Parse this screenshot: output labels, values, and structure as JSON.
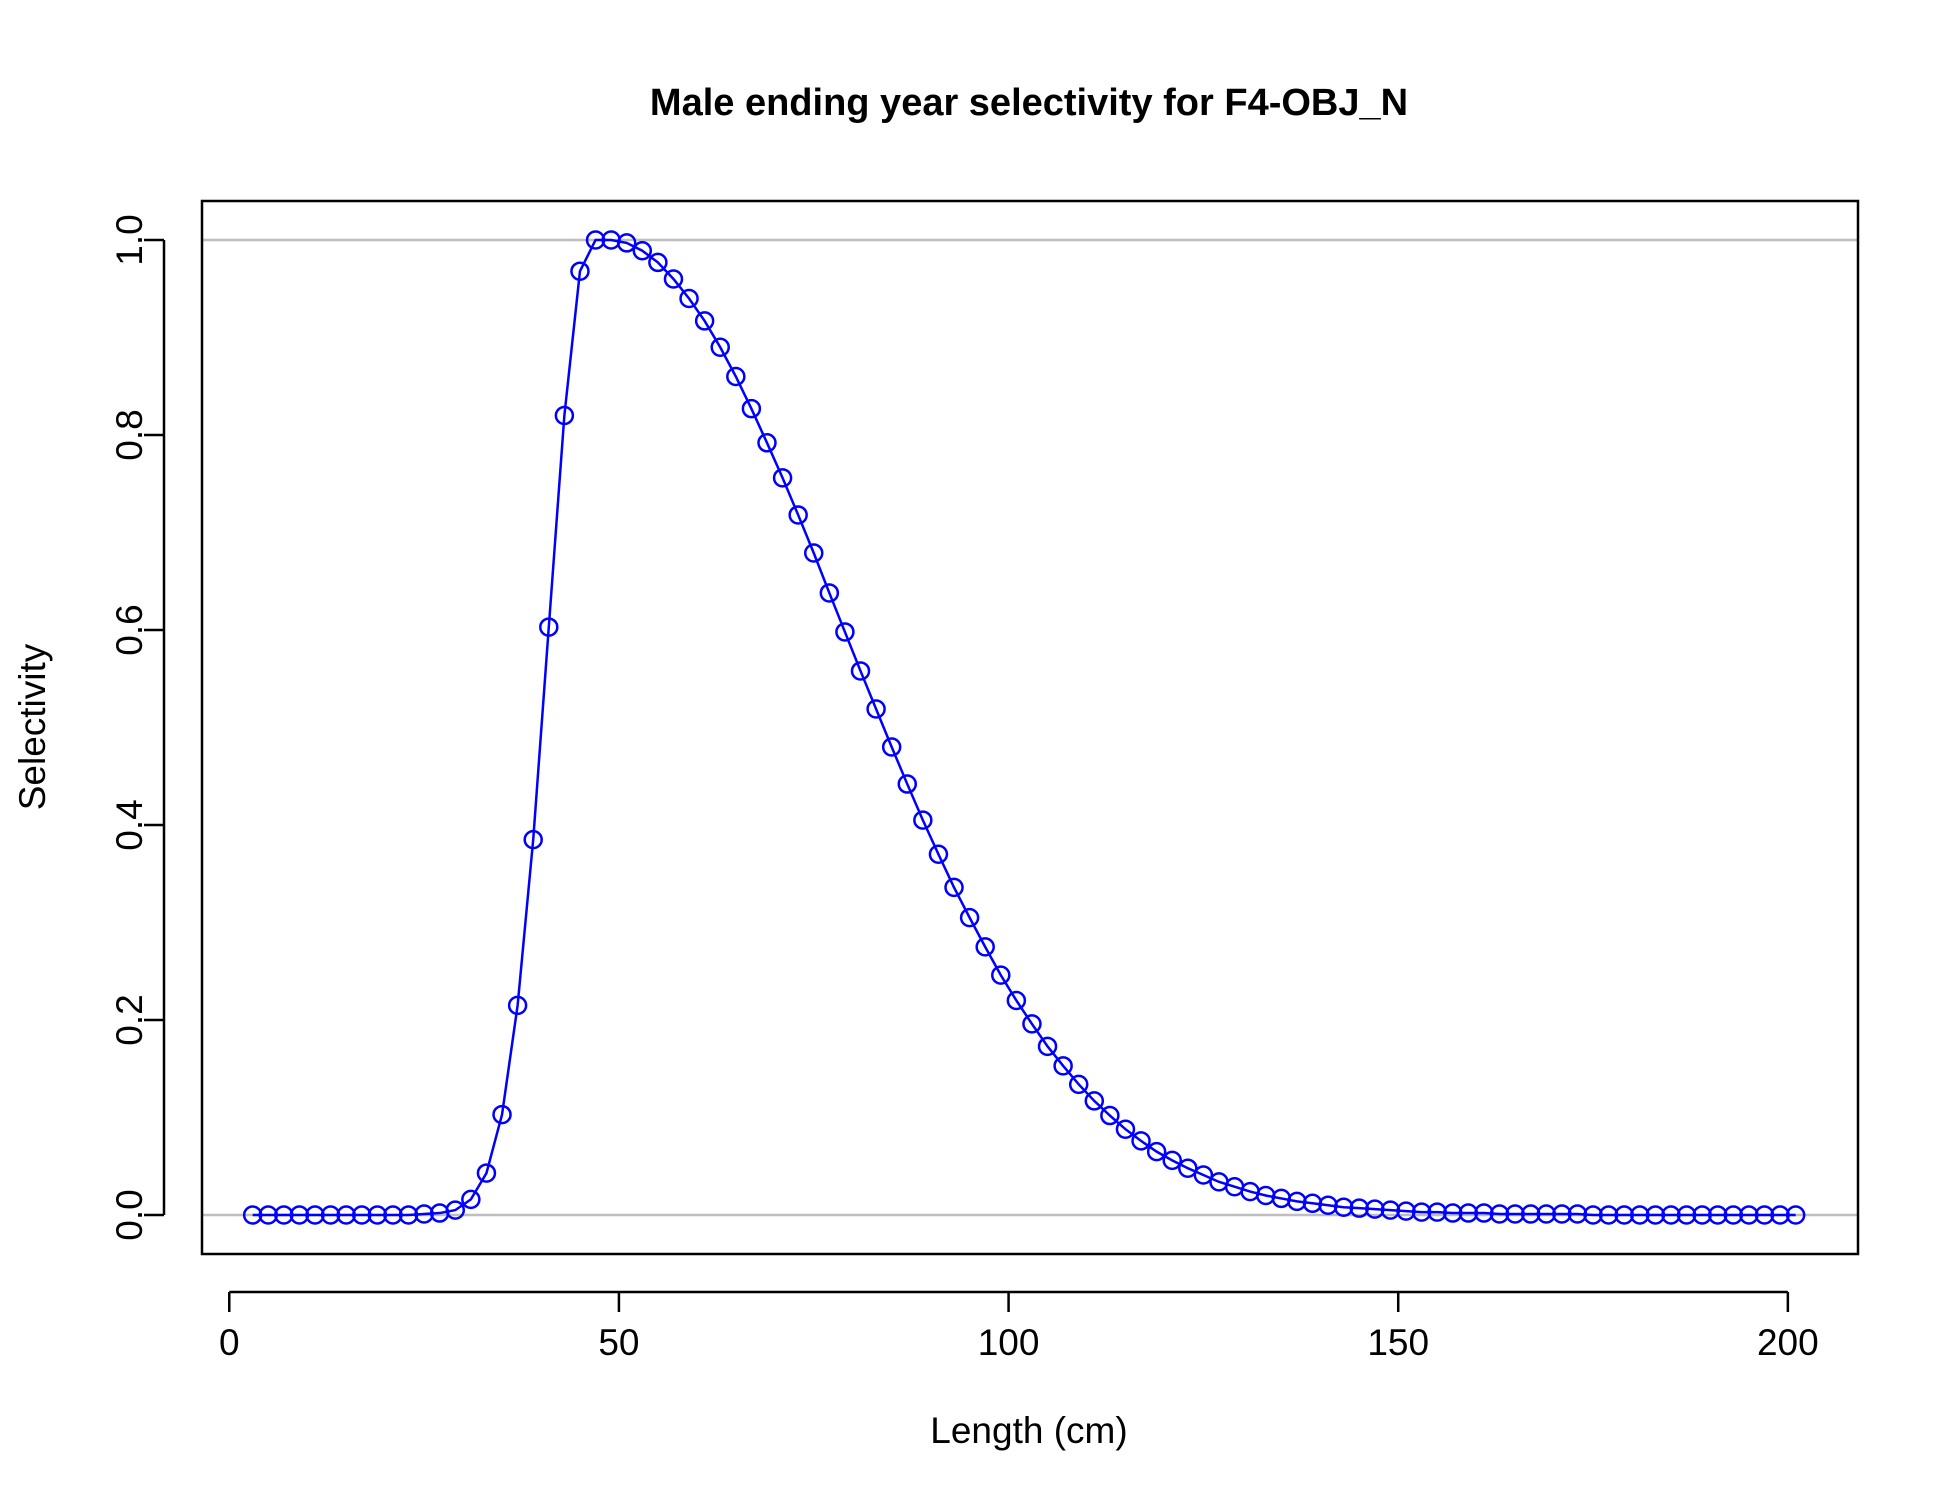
{
  "chart_data": {
    "type": "line",
    "title": "Male ending year selectivity for F4-OBJ_N",
    "xlabel": "Length (cm)",
    "ylabel": "Selectivity",
    "xlim": [
      -3.5,
      209
    ],
    "ylim": [
      -0.04,
      1.04
    ],
    "xticks": [
      "0",
      "50",
      "100",
      "150",
      "200"
    ],
    "yticks": [
      "0.0",
      "0.2",
      "0.4",
      "0.6",
      "0.8",
      "1.0"
    ],
    "reference_lines": [
      0,
      1
    ],
    "grid": false,
    "legend": "none",
    "markers": "open-circle",
    "colors": {
      "series": "#0000ff",
      "reference": "#bebebe",
      "axis": "#000000"
    },
    "series": [
      {
        "x": [
          3,
          5,
          7,
          9,
          11,
          13,
          15,
          17,
          19,
          21,
          23,
          25,
          27,
          29,
          31,
          33,
          35,
          37,
          39,
          41,
          43,
          45,
          47,
          49,
          51,
          53,
          55,
          57,
          59,
          61,
          63,
          65,
          67,
          69,
          71,
          73,
          75,
          77,
          79,
          81,
          83,
          85,
          87,
          89,
          91,
          93,
          95,
          97,
          99,
          101,
          103,
          105,
          107,
          109,
          111,
          113,
          115,
          117,
          119,
          121,
          123,
          125,
          127,
          129,
          131,
          133,
          135,
          137,
          139,
          141,
          143,
          145,
          147,
          149,
          151,
          153,
          155,
          157,
          159,
          161,
          163,
          165,
          167,
          169,
          171,
          173,
          175,
          177,
          179,
          181,
          183,
          185,
          187,
          189,
          191,
          193,
          195,
          197,
          199,
          201
        ],
        "y": [
          0,
          0,
          0,
          0,
          0,
          0,
          0,
          0,
          0,
          0,
          0,
          0.001,
          0.002,
          0.005,
          0.016,
          0.043,
          0.103,
          0.215,
          0.385,
          0.603,
          0.82,
          0.968,
          1.0,
          1.0,
          0.997,
          0.989,
          0.977,
          0.96,
          0.94,
          0.917,
          0.89,
          0.86,
          0.827,
          0.792,
          0.756,
          0.718,
          0.679,
          0.638,
          0.598,
          0.558,
          0.519,
          0.48,
          0.442,
          0.405,
          0.37,
          0.336,
          0.305,
          0.275,
          0.246,
          0.22,
          0.196,
          0.173,
          0.153,
          0.134,
          0.117,
          0.102,
          0.088,
          0.076,
          0.065,
          0.056,
          0.048,
          0.041,
          0.034,
          0.029,
          0.024,
          0.02,
          0.017,
          0.014,
          0.012,
          0.01,
          0.008,
          0.007,
          0.006,
          0.005,
          0.004,
          0.003,
          0.003,
          0.002,
          0.002,
          0.002,
          0.001,
          0.001,
          0.001,
          0.001,
          0.001,
          0.001,
          0,
          0,
          0,
          0,
          0,
          0,
          0,
          0,
          0,
          0,
          0,
          0,
          0,
          0
        ]
      }
    ]
  }
}
